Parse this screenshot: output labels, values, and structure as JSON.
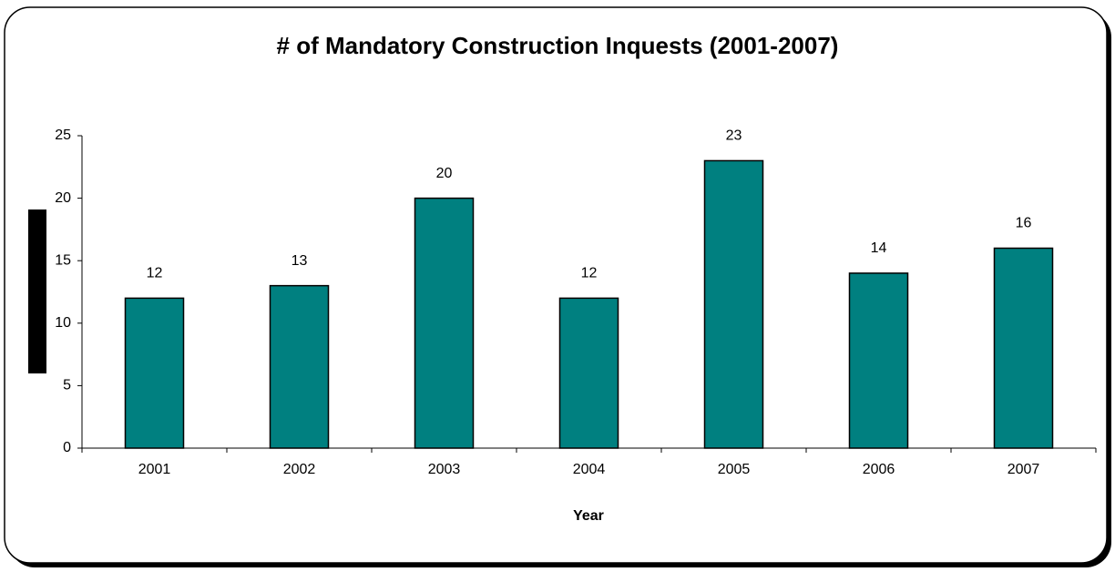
{
  "chart_data": {
    "type": "bar",
    "title": "# of Mandatory Construction Inquests (2001-2007)",
    "x_label": "Year",
    "categories": [
      "2001",
      "2002",
      "2003",
      "2004",
      "2005",
      "2006",
      "2007"
    ],
    "values": [
      12,
      13,
      20,
      12,
      23,
      14,
      16
    ],
    "color": "#008080",
    "ylim": [
      0,
      25
    ],
    "yticks": [
      0,
      5,
      10,
      15,
      20,
      25
    ],
    "grid": false
  }
}
